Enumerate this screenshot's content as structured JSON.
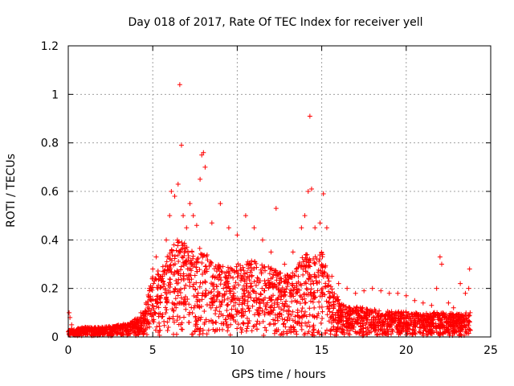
{
  "chart_data": {
    "type": "scatter",
    "title": "Day 018 of 2017, Rate Of TEC Index for receiver yell",
    "xlabel": "GPS time / hours",
    "ylabel": "ROTI / TECUs",
    "xlim": [
      0,
      25
    ],
    "ylim": [
      0,
      1.2
    ],
    "xticks": [
      0,
      5,
      10,
      15,
      20,
      25
    ],
    "xtick_labels": [
      "0",
      "5",
      "10",
      "15",
      "20",
      "25"
    ],
    "yticks": [
      0,
      0.2,
      0.4,
      0.6,
      0.8,
      1,
      1.2
    ],
    "ytick_labels": [
      "0",
      "0.2",
      "0.4",
      "0.6",
      "0.8",
      "1",
      "1.2"
    ],
    "grid": true,
    "marker": "+",
    "series": [
      {
        "name": "ROTI",
        "color": "#ff0000",
        "points": [
          [
            0.05,
            0.1
          ],
          [
            0.1,
            0.08
          ],
          [
            0.2,
            0.05
          ],
          [
            0.5,
            0.03
          ],
          [
            1.0,
            0.04
          ],
          [
            1.5,
            0.03
          ],
          [
            2.0,
            0.04
          ],
          [
            2.5,
            0.03
          ],
          [
            3.0,
            0.04
          ],
          [
            3.5,
            0.05
          ],
          [
            4.0,
            0.07
          ],
          [
            4.3,
            0.1
          ],
          [
            4.6,
            0.14
          ],
          [
            4.8,
            0.2
          ],
          [
            5.0,
            0.28
          ],
          [
            5.2,
            0.33
          ],
          [
            5.5,
            0.25
          ],
          [
            5.8,
            0.4
          ],
          [
            6.0,
            0.5
          ],
          [
            6.1,
            0.6
          ],
          [
            6.3,
            0.58
          ],
          [
            6.5,
            0.63
          ],
          [
            6.6,
            1.04
          ],
          [
            6.7,
            0.79
          ],
          [
            6.8,
            0.5
          ],
          [
            7.0,
            0.45
          ],
          [
            7.2,
            0.55
          ],
          [
            7.4,
            0.5
          ],
          [
            7.6,
            0.46
          ],
          [
            7.8,
            0.65
          ],
          [
            7.9,
            0.75
          ],
          [
            8.0,
            0.76
          ],
          [
            8.1,
            0.7
          ],
          [
            8.5,
            0.47
          ],
          [
            9.0,
            0.55
          ],
          [
            9.5,
            0.45
          ],
          [
            10.0,
            0.42
          ],
          [
            10.5,
            0.5
          ],
          [
            11.0,
            0.45
          ],
          [
            11.5,
            0.4
          ],
          [
            12.0,
            0.35
          ],
          [
            12.3,
            0.53
          ],
          [
            12.8,
            0.3
          ],
          [
            13.3,
            0.35
          ],
          [
            13.8,
            0.45
          ],
          [
            14.0,
            0.5
          ],
          [
            14.2,
            0.6
          ],
          [
            14.3,
            0.91
          ],
          [
            14.4,
            0.61
          ],
          [
            14.6,
            0.45
          ],
          [
            14.9,
            0.47
          ],
          [
            15.1,
            0.59
          ],
          [
            15.3,
            0.45
          ],
          [
            15.6,
            0.25
          ],
          [
            16.0,
            0.22
          ],
          [
            16.5,
            0.2
          ],
          [
            17.0,
            0.18
          ],
          [
            17.5,
            0.19
          ],
          [
            18.0,
            0.2
          ],
          [
            18.5,
            0.19
          ],
          [
            19.0,
            0.18
          ],
          [
            19.5,
            0.18
          ],
          [
            20.0,
            0.17
          ],
          [
            20.5,
            0.15
          ],
          [
            21.0,
            0.14
          ],
          [
            21.5,
            0.13
          ],
          [
            21.8,
            0.2
          ],
          [
            22.0,
            0.33
          ],
          [
            22.1,
            0.3
          ],
          [
            22.5,
            0.14
          ],
          [
            22.8,
            0.12
          ],
          [
            23.2,
            0.22
          ],
          [
            23.5,
            0.18
          ],
          [
            23.7,
            0.2
          ],
          [
            23.75,
            0.28
          ]
        ],
        "envelope": [
          [
            0,
            0.03
          ],
          [
            0.5,
            0.03
          ],
          [
            1,
            0.035
          ],
          [
            2,
            0.035
          ],
          [
            3,
            0.045
          ],
          [
            3.5,
            0.05
          ],
          [
            4,
            0.07
          ],
          [
            4.5,
            0.1
          ],
          [
            5,
            0.25
          ],
          [
            5.5,
            0.28
          ],
          [
            6,
            0.35
          ],
          [
            6.5,
            0.4
          ],
          [
            7,
            0.38
          ],
          [
            7.5,
            0.35
          ],
          [
            8,
            0.38
          ],
          [
            8.5,
            0.3
          ],
          [
            9,
            0.3
          ],
          [
            9.5,
            0.28
          ],
          [
            10,
            0.3
          ],
          [
            10.5,
            0.3
          ],
          [
            11,
            0.32
          ],
          [
            11.5,
            0.3
          ],
          [
            12,
            0.28
          ],
          [
            12.5,
            0.26
          ],
          [
            13,
            0.25
          ],
          [
            13.5,
            0.28
          ],
          [
            14,
            0.35
          ],
          [
            14.5,
            0.32
          ],
          [
            15,
            0.35
          ],
          [
            15.5,
            0.22
          ],
          [
            16,
            0.15
          ],
          [
            16.5,
            0.12
          ],
          [
            17,
            0.12
          ],
          [
            18,
            0.11
          ],
          [
            19,
            0.1
          ],
          [
            20,
            0.1
          ],
          [
            21,
            0.09
          ],
          [
            22,
            0.1
          ],
          [
            23,
            0.09
          ],
          [
            23.8,
            0.1
          ]
        ]
      }
    ]
  }
}
